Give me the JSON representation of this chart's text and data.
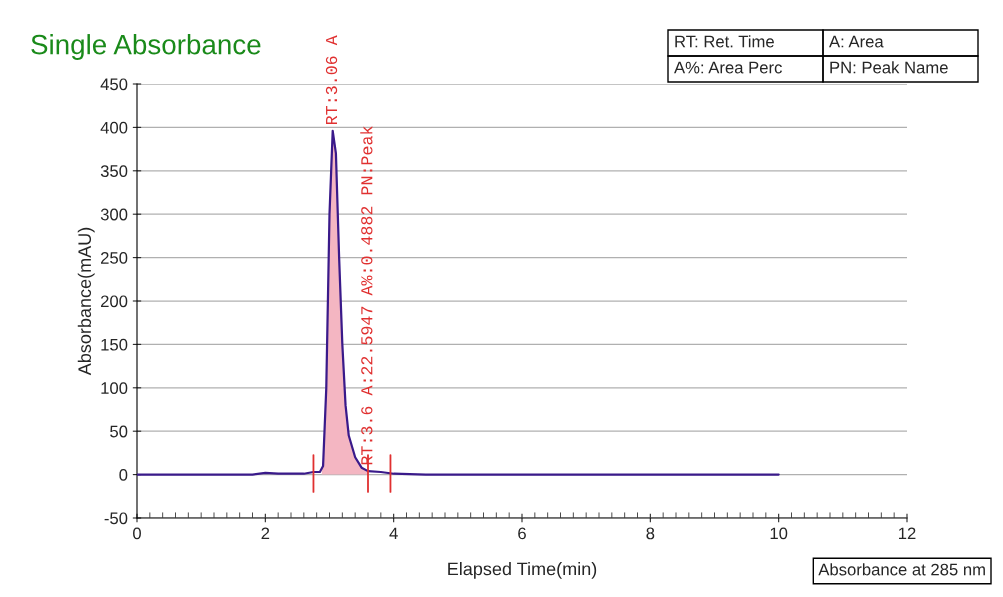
{
  "chart_data": {
    "type": "line",
    "title": "Single Absorbance",
    "xlabel": "Elapsed Time(min)",
    "ylabel": "Absorbance(mAU)",
    "xlim": [
      0,
      12
    ],
    "xticks": [
      0,
      2,
      4,
      6,
      8,
      10,
      12
    ],
    "ylim": [
      -50,
      450
    ],
    "yticks": [
      -50,
      0,
      50,
      100,
      150,
      200,
      250,
      300,
      350,
      400,
      450
    ],
    "grid": "y",
    "legend": false,
    "series": [
      {
        "type": "area",
        "color": "#f4b6c2",
        "x": [
          2.88,
          2.92,
          2.95,
          3.0,
          3.05,
          3.1,
          3.15,
          3.2,
          3.25,
          3.3,
          3.4,
          3.5,
          3.6
        ],
        "values": [
          5,
          30,
          100,
          300,
          396,
          370,
          250,
          150,
          80,
          45,
          20,
          8,
          4
        ]
      },
      {
        "color": "#3a1a8a",
        "x": [
          0,
          1.8,
          2.0,
          2.2,
          2.6,
          2.75,
          2.85,
          2.9,
          2.95,
          3.0,
          3.05,
          3.1,
          3.15,
          3.2,
          3.25,
          3.3,
          3.4,
          3.5,
          3.6,
          3.8,
          4.0,
          4.5,
          10
        ],
        "values": [
          0,
          0,
          2,
          1,
          1,
          3,
          3,
          10,
          100,
          300,
          396,
          370,
          250,
          150,
          80,
          45,
          20,
          8,
          4,
          3,
          1,
          0,
          0
        ]
      }
    ],
    "ref_lines": [
      {
        "axis": "x",
        "value": 2.75,
        "color": "#e03030"
      },
      {
        "axis": "x",
        "value": 3.6,
        "color": "#e03030"
      },
      {
        "axis": "x",
        "value": 3.95,
        "color": "#e03030"
      }
    ],
    "annotations": [
      {
        "text": "RT:3.06 A",
        "x": 3.05,
        "y": 396
      },
      {
        "text": "RT:3.6 A:22.5947 A%:0.4882 PN:Peak",
        "x": 3.6,
        "y": 4
      },
      "RT: Ret. Time",
      "A: Area",
      "A%: Area Perc",
      "PN: Peak Name",
      "Absorbance at 285 nm"
    ]
  }
}
